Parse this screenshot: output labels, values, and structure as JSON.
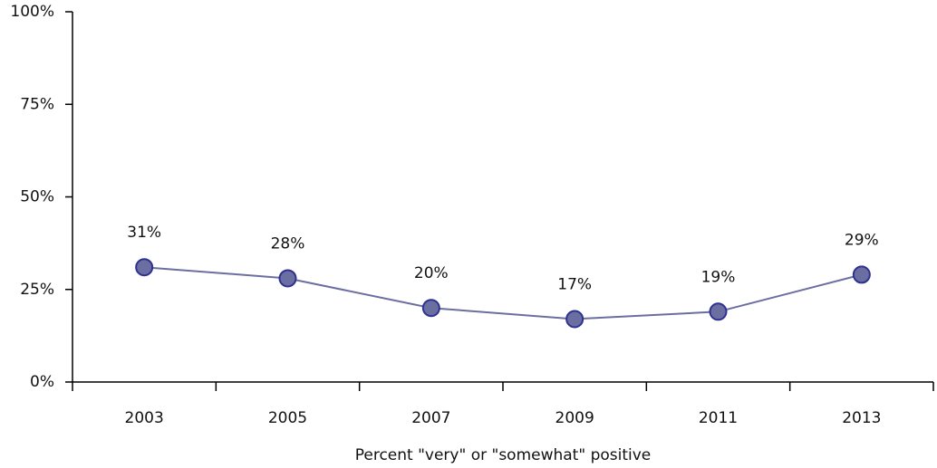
{
  "chart_data": {
    "type": "line",
    "x_label": "Percent \"very\" or \"somewhat\" positive",
    "categories": [
      "2003",
      "2005",
      "2007",
      "2009",
      "2011",
      "2013"
    ],
    "series": [
      {
        "color": "#6b6ea0",
        "values": [
          31,
          28,
          20,
          17,
          19,
          29
        ],
        "value_labels": [
          "31%",
          "28%",
          "20%",
          "17%",
          "19%",
          "29%"
        ]
      }
    ],
    "ylim": [
      0,
      100
    ],
    "yticks": [
      {
        "value": 0,
        "label": "0%"
      },
      {
        "value": 25,
        "label": "25%"
      },
      {
        "value": 50,
        "label": "50%"
      },
      {
        "value": 75,
        "label": "75%"
      },
      {
        "value": 100,
        "label": "100%"
      }
    ],
    "grid": false
  }
}
